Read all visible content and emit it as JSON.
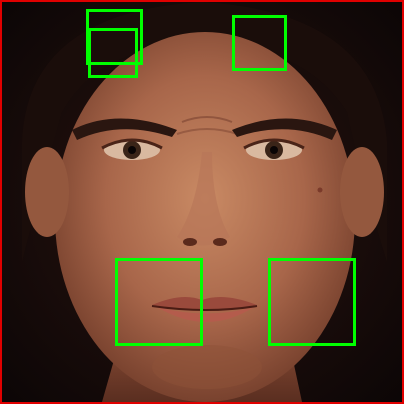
{
  "image": {
    "subject": "face-photo",
    "frame_color": "#e00000"
  },
  "annotations": {
    "box_color": "#00ff00",
    "count": 5
  }
}
